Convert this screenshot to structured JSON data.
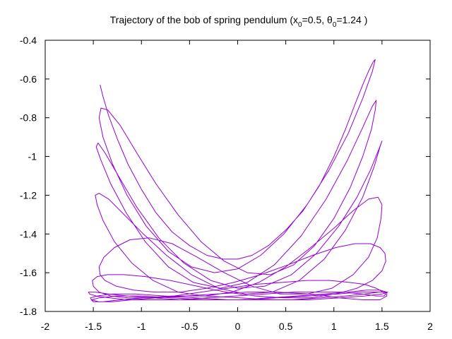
{
  "chart_data": {
    "type": "line",
    "title": {
      "prefix": "Trajectory of the bob of spring pendulum (x",
      "x0_sub": "0",
      "x0_val": "=0.5, ",
      "theta": "θ",
      "theta_sub": "0",
      "theta_val": "=1.24 )"
    },
    "xlabel": "",
    "ylabel": "",
    "xlim": [
      -2,
      2
    ],
    "ylim": [
      -1.8,
      -0.4
    ],
    "xticks": [
      -2,
      -1.5,
      -1,
      -0.5,
      0,
      0.5,
      1,
      1.5,
      2
    ],
    "xtick_labels": [
      "-2",
      "-1.5",
      "-1",
      "-0.5",
      "0",
      "0.5",
      "1",
      "1.5",
      "2"
    ],
    "yticks": [
      -1.8,
      -1.6,
      -1.4,
      -1.2,
      -1,
      -0.8,
      -0.6,
      -0.4
    ],
    "ytick_labels": [
      "-1.8",
      "-1.6",
      "-1.4",
      "-1.2",
      "-1",
      "-0.8",
      "-0.6",
      "-0.4"
    ],
    "grid": false,
    "line_color": "#9400d3",
    "series": [
      {
        "x": [
          -1.43,
          -1.4,
          -1.34,
          -1.25,
          -1.14,
          -1.0,
          -0.85,
          -0.68,
          -0.5,
          -0.32,
          -0.15,
          0.0,
          0.15,
          0.32,
          0.5,
          0.68,
          0.85,
          1.0,
          1.12,
          1.22,
          1.3,
          1.36,
          1.41,
          1.43,
          1.4,
          1.3,
          1.15,
          0.95,
          0.72,
          0.48,
          0.24,
          0.0,
          -0.24,
          -0.48,
          -0.72,
          -0.95,
          -1.15,
          -1.3,
          -1.4,
          -1.44,
          -1.42,
          -1.35,
          -1.22,
          -1.05,
          -0.85,
          -0.62,
          -0.38,
          -0.14,
          0.1,
          0.34,
          0.58,
          0.8,
          1.0,
          1.17,
          1.3,
          1.39,
          1.43,
          1.44,
          1.4,
          1.3,
          1.14,
          0.92,
          0.66,
          0.38,
          0.1,
          -0.18,
          -0.46,
          -0.72,
          -0.96,
          -1.16,
          -1.32,
          -1.42,
          -1.47,
          -1.45,
          -1.38,
          -1.24,
          -1.05,
          -0.82,
          -0.56,
          -0.28,
          0.0,
          0.28,
          0.56,
          0.82,
          1.05,
          1.24,
          1.38,
          1.47,
          1.5,
          1.48,
          1.42,
          1.3,
          1.12,
          0.9,
          0.64,
          0.36,
          0.08,
          -0.2,
          -0.48,
          -0.74,
          -0.98,
          -1.18,
          -1.34,
          -1.44,
          -1.48,
          -1.46,
          -1.4,
          -1.28,
          -1.1,
          -0.88,
          -0.62,
          -0.34,
          -0.06,
          0.22,
          0.5,
          0.76,
          1.0,
          1.2,
          1.36,
          1.46,
          1.5,
          1.49,
          1.45,
          1.36,
          1.2,
          0.98,
          0.72,
          0.44,
          0.15,
          -0.14,
          -0.42,
          -0.68,
          -0.92,
          -1.12,
          -1.28,
          -1.39,
          -1.44,
          -1.43,
          -1.38,
          -1.26,
          -1.08,
          -0.86,
          -0.6,
          -0.32,
          -0.04,
          0.24,
          0.52,
          0.78,
          1.02,
          1.22,
          1.38,
          1.48,
          1.53,
          1.54,
          1.5,
          1.4,
          1.24,
          1.02,
          0.76,
          0.48,
          0.18,
          -0.12,
          -0.42,
          -0.7,
          -0.96,
          -1.18,
          -1.35,
          -1.46,
          -1.51,
          -1.5,
          -1.44,
          -1.32,
          -1.14,
          -0.92,
          -0.66,
          -0.38,
          -0.1,
          0.18,
          0.46,
          0.72,
          0.96,
          1.16,
          1.32,
          1.44,
          1.51,
          1.54,
          1.52,
          1.44,
          1.3,
          1.1,
          0.86,
          0.58,
          0.28,
          -0.02,
          -0.32,
          -0.62,
          -0.9,
          -1.14,
          -1.33,
          -1.47,
          -1.54,
          -1.55,
          -1.48,
          -1.34,
          -1.14,
          -0.88,
          -0.58,
          -0.28,
          0.02,
          0.32,
          0.62,
          0.9,
          1.14,
          1.34,
          1.48,
          1.55,
          1.55,
          1.48,
          1.3,
          1.05,
          0.75,
          0.42,
          0.1,
          -0.22,
          -0.54,
          -0.84,
          -1.1,
          -1.3,
          -1.44,
          -1.52,
          -1.53,
          -1.46,
          -1.3,
          -1.06,
          -0.76,
          -0.44,
          -0.1,
          0.24,
          0.56,
          0.86,
          1.12,
          1.32,
          1.47,
          1.55,
          1.56,
          1.5,
          1.32,
          1.06,
          0.74,
          0.38,
          0.02,
          -0.34,
          -0.68,
          -0.98,
          -1.22,
          -1.4,
          -1.5,
          -1.52,
          -1.44,
          -1.26,
          -1.0,
          -0.68,
          -0.32,
          0.04,
          0.4,
          0.74,
          1.04,
          1.28,
          1.46,
          1.55,
          1.56
        ],
        "y": [
          -0.63,
          -0.69,
          -0.79,
          -0.91,
          -1.04,
          -1.17,
          -1.29,
          -1.39,
          -1.46,
          -1.51,
          -1.53,
          -1.53,
          -1.51,
          -1.46,
          -1.38,
          -1.28,
          -1.15,
          -1.0,
          -0.86,
          -0.73,
          -0.63,
          -0.56,
          -0.51,
          -0.5,
          -0.56,
          -0.7,
          -0.88,
          -1.07,
          -1.25,
          -1.4,
          -1.51,
          -1.58,
          -1.6,
          -1.57,
          -1.49,
          -1.36,
          -1.2,
          -1.04,
          -0.9,
          -0.8,
          -0.75,
          -0.76,
          -0.84,
          -0.98,
          -1.14,
          -1.3,
          -1.44,
          -1.54,
          -1.6,
          -1.61,
          -1.56,
          -1.46,
          -1.32,
          -1.16,
          -1.0,
          -0.86,
          -0.76,
          -0.71,
          -0.74,
          -0.85,
          -1.02,
          -1.22,
          -1.41,
          -1.56,
          -1.65,
          -1.68,
          -1.65,
          -1.57,
          -1.44,
          -1.29,
          -1.14,
          -1.02,
          -0.95,
          -0.93,
          -0.98,
          -1.1,
          -1.26,
          -1.42,
          -1.55,
          -1.64,
          -1.68,
          -1.67,
          -1.61,
          -1.5,
          -1.36,
          -1.21,
          -1.07,
          -0.96,
          -0.92,
          -0.95,
          -1.05,
          -1.21,
          -1.38,
          -1.53,
          -1.64,
          -1.7,
          -1.71,
          -1.68,
          -1.61,
          -1.51,
          -1.4,
          -1.3,
          -1.22,
          -1.19,
          -1.2,
          -1.25,
          -1.33,
          -1.44,
          -1.55,
          -1.64,
          -1.7,
          -1.72,
          -1.7,
          -1.65,
          -1.57,
          -1.47,
          -1.37,
          -1.28,
          -1.22,
          -1.21,
          -1.25,
          -1.32,
          -1.42,
          -1.52,
          -1.61,
          -1.68,
          -1.71,
          -1.71,
          -1.67,
          -1.6,
          -1.52,
          -1.45,
          -1.42,
          -1.43,
          -1.47,
          -1.52,
          -1.57,
          -1.61,
          -1.64,
          -1.67,
          -1.69,
          -1.7,
          -1.7,
          -1.68,
          -1.65,
          -1.61,
          -1.56,
          -1.51,
          -1.47,
          -1.45,
          -1.45,
          -1.47,
          -1.5,
          -1.54,
          -1.59,
          -1.64,
          -1.68,
          -1.71,
          -1.73,
          -1.73,
          -1.72,
          -1.7,
          -1.67,
          -1.64,
          -1.62,
          -1.61,
          -1.61,
          -1.62,
          -1.64,
          -1.67,
          -1.7,
          -1.72,
          -1.73,
          -1.73,
          -1.72,
          -1.7,
          -1.68,
          -1.66,
          -1.65,
          -1.64,
          -1.64,
          -1.65,
          -1.66,
          -1.68,
          -1.7,
          -1.71,
          -1.72,
          -1.72,
          -1.71,
          -1.7,
          -1.7,
          -1.7,
          -1.71,
          -1.72,
          -1.73,
          -1.74,
          -1.74,
          -1.74,
          -1.73,
          -1.72,
          -1.71,
          -1.7,
          -1.7,
          -1.71,
          -1.72,
          -1.73,
          -1.74,
          -1.74,
          -1.74,
          -1.73,
          -1.72,
          -1.71,
          -1.7,
          -1.69,
          -1.69,
          -1.7,
          -1.72,
          -1.74,
          -1.74,
          -1.73,
          -1.71,
          -1.7,
          -1.7,
          -1.71,
          -1.72,
          -1.73,
          -1.74,
          -1.75,
          -1.75,
          -1.74,
          -1.73,
          -1.72,
          -1.71,
          -1.71,
          -1.72,
          -1.73,
          -1.74,
          -1.74,
          -1.74,
          -1.73,
          -1.72,
          -1.71,
          -1.7,
          -1.7,
          -1.7,
          -1.71,
          -1.72,
          -1.73,
          -1.74,
          -1.74,
          -1.73,
          -1.72,
          -1.72,
          -1.73,
          -1.74,
          -1.75,
          -1.75,
          -1.74,
          -1.73,
          -1.72,
          -1.72,
          -1.73,
          -1.74,
          -1.74,
          -1.73,
          -1.72,
          -1.71,
          -1.7,
          -1.7,
          -1.7,
          -1.7
        ]
      }
    ]
  }
}
